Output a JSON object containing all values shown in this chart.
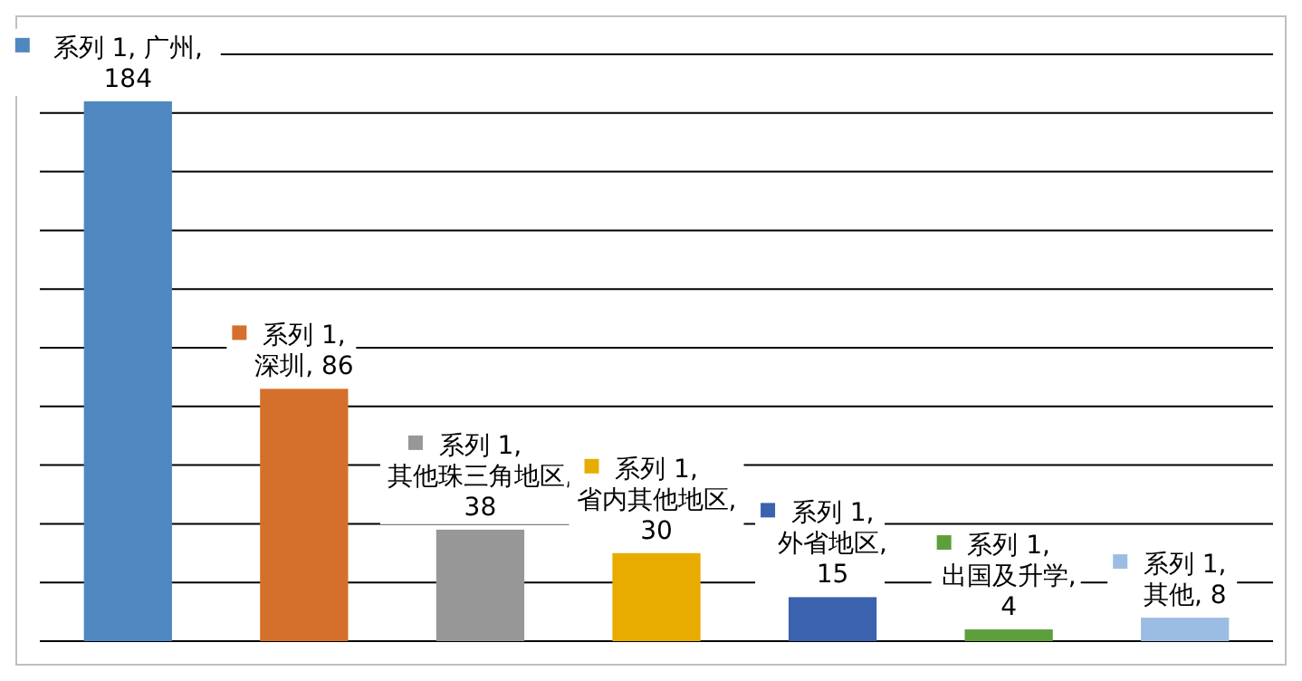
{
  "chart_data": {
    "type": "bar",
    "categories": [
      null,
      null,
      null,
      null,
      null,
      null,
      null
    ],
    "series": [
      {
        "values": [
          184,
          86,
          38,
          30,
          15,
          4,
          8
        ],
        "colors": [
          "#4f88c0",
          "#d4702c",
          "#979797",
          "#e8ac00",
          "#3b62ae",
          "#5d9f3d",
          "#9cbde3"
        ],
        "value_labels": [
          "系列 1, 广州, 184",
          "系列 1, 深圳, 86",
          "系列 1, 其他珠三角地区, 38",
          "系列 1, 省内其他地区, 30",
          "系列 1, 外省地区, 15",
          "系列 1, 出国及升学, 4",
          "系列 1, 其他, 8"
        ]
      }
    ],
    "ylim": [
      0,
      200
    ],
    "yticks": [
      {
        "value": 0,
        "label": null
      },
      {
        "value": 20,
        "label": null
      },
      {
        "value": 40,
        "label": null
      },
      {
        "value": 60,
        "label": null
      },
      {
        "value": 80,
        "label": null
      },
      {
        "value": 100,
        "label": null
      },
      {
        "value": 120,
        "label": null
      },
      {
        "value": 140,
        "label": null
      },
      {
        "value": 160,
        "label": null
      },
      {
        "value": 180,
        "label": null
      },
      {
        "value": 200,
        "label": null
      }
    ],
    "grid": "y"
  }
}
